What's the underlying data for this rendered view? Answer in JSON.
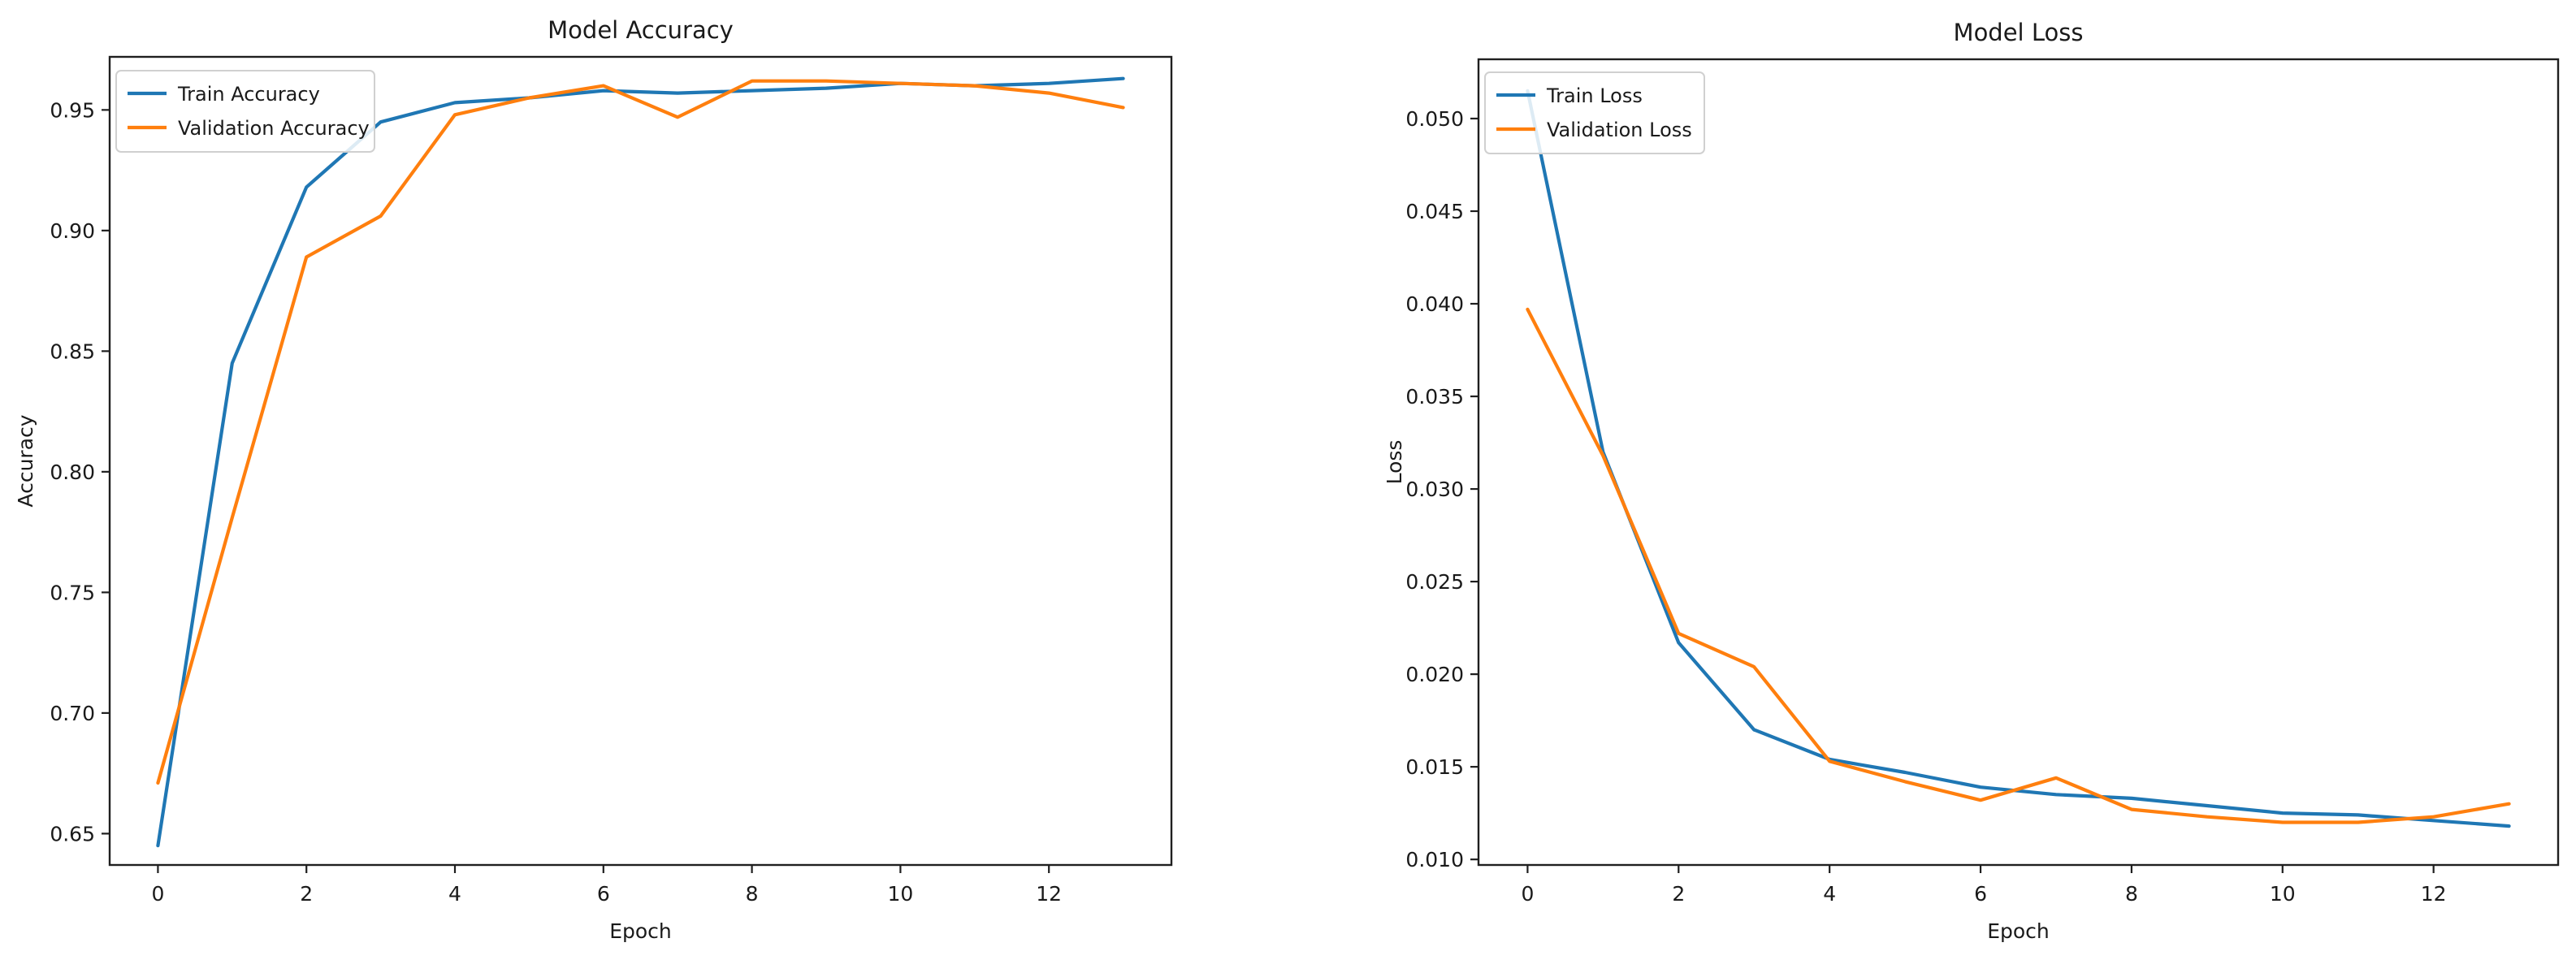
{
  "colors": {
    "train": "#1f77b4",
    "validation": "#ff7f0e",
    "axes": "#1f1f1f",
    "background": "#ffffff"
  },
  "chart_data": [
    {
      "type": "line",
      "title": "Model Accuracy",
      "xlabel": "Epoch",
      "ylabel": "Accuracy",
      "x": [
        0,
        1,
        2,
        3,
        4,
        5,
        6,
        7,
        8,
        9,
        10,
        11,
        12,
        13
      ],
      "xlim": [
        -0.65,
        13.65
      ],
      "ylim": [
        0.637,
        0.972
      ],
      "xticks": [
        0,
        2,
        4,
        6,
        8,
        10,
        12
      ],
      "xtick_labels": [
        "0",
        "2",
        "4",
        "6",
        "8",
        "10",
        "12"
      ],
      "yticks": [
        0.65,
        0.7,
        0.75,
        0.8,
        0.85,
        0.9,
        0.95
      ],
      "ytick_labels": [
        "0.65",
        "0.70",
        "0.75",
        "0.80",
        "0.85",
        "0.90",
        "0.95"
      ],
      "grid": false,
      "legend_position": "top-left",
      "series": [
        {
          "name": "Train Accuracy",
          "color": "#1f77b4",
          "values": [
            0.645,
            0.845,
            0.918,
            0.945,
            0.953,
            0.955,
            0.958,
            0.957,
            0.958,
            0.959,
            0.961,
            0.96,
            0.961,
            0.963
          ]
        },
        {
          "name": "Validation Accuracy",
          "color": "#ff7f0e",
          "values": [
            0.671,
            0.781,
            0.889,
            0.906,
            0.948,
            0.955,
            0.96,
            0.947,
            0.962,
            0.962,
            0.961,
            0.96,
            0.957,
            0.951
          ]
        }
      ]
    },
    {
      "type": "line",
      "title": "Model Loss",
      "xlabel": "Epoch",
      "ylabel": "Loss",
      "x": [
        0,
        1,
        2,
        3,
        4,
        5,
        6,
        7,
        8,
        9,
        10,
        11,
        12,
        13
      ],
      "xlim": [
        -0.65,
        13.65
      ],
      "ylim": [
        0.0097,
        0.0532
      ],
      "xticks": [
        0,
        2,
        4,
        6,
        8,
        10,
        12
      ],
      "xtick_labels": [
        "0",
        "2",
        "4",
        "6",
        "8",
        "10",
        "12"
      ],
      "yticks": [
        0.01,
        0.015,
        0.02,
        0.025,
        0.03,
        0.035,
        0.04,
        0.045,
        0.05
      ],
      "ytick_labels": [
        "0.010",
        "0.015",
        "0.020",
        "0.025",
        "0.030",
        "0.035",
        "0.040",
        "0.045",
        "0.050"
      ],
      "grid": false,
      "legend_position": "top-left",
      "series": [
        {
          "name": "Train Loss",
          "color": "#1f77b4",
          "values": [
            0.0515,
            0.032,
            0.0217,
            0.017,
            0.0154,
            0.0147,
            0.0139,
            0.0135,
            0.0133,
            0.0129,
            0.0125,
            0.0124,
            0.0121,
            0.0118
          ]
        },
        {
          "name": "Validation Loss",
          "color": "#ff7f0e",
          "values": [
            0.0397,
            0.0318,
            0.0222,
            0.0204,
            0.0153,
            0.0142,
            0.0132,
            0.0144,
            0.0127,
            0.0123,
            0.012,
            0.012,
            0.0123,
            0.013
          ]
        }
      ]
    }
  ]
}
